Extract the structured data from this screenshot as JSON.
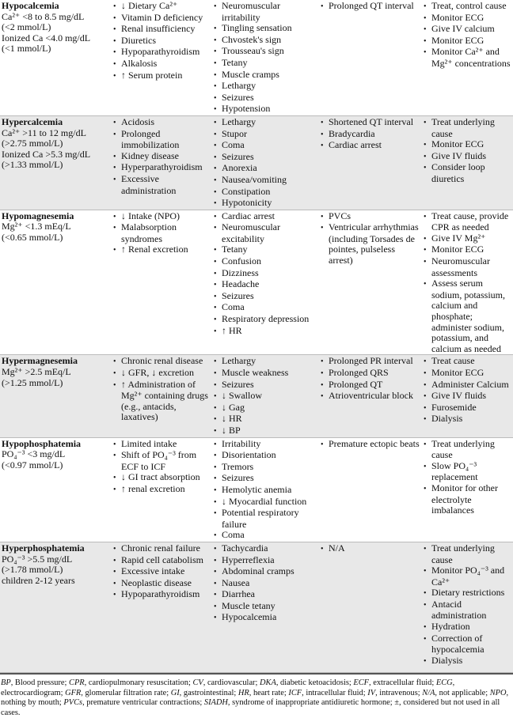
{
  "rows": [
    {
      "condition": "Hypocalcemia",
      "criteria": [
        "Ca²⁺ <8 to 8.5 mg/dL",
        "(<2 mmol/L)",
        "Ionized Ca <4.0 mg/dL",
        "(<1 mmol/L)"
      ],
      "causes": [
        "↓ Dietary Ca²⁺",
        "Vitamin D deficiency",
        "Renal insufficiency",
        "Diuretics",
        "Hypoparathyroidism",
        "Alkalosis",
        "↑ Serum protein"
      ],
      "signs": [
        "Neuromuscular irritability",
        "Tingling sensation",
        "Chvostek's sign",
        "Trousseau's sign",
        "Tetany",
        "Muscle cramps",
        "Lethargy",
        "Seizures",
        "Hypotension"
      ],
      "ecg": [
        "Prolonged QT interval"
      ],
      "treatment": [
        "Treat, control cause",
        "Monitor ECG",
        "Give IV calcium",
        "Monitor ECG",
        "Monitor Ca²⁺ and Mg²⁺ concentrations"
      ]
    },
    {
      "condition": "Hypercalcemia",
      "criteria": [
        "Ca²⁺ >11 to 12 mg/dL",
        "(>2.75 mmol/L)",
        "Ionized Ca >5.3 mg/dL",
        "(>1.33 mmol/L)"
      ],
      "causes": [
        "Acidosis",
        "Prolonged immobilization",
        "Kidney disease",
        "Hyperparathyroidism",
        "Excessive administration"
      ],
      "signs": [
        "Lethargy",
        "Stupor",
        "Coma",
        "Seizures",
        "Anorexia",
        "Nausea/vomiting",
        "Constipation",
        "Hypotonicity"
      ],
      "ecg": [
        "Shortened QT interval",
        "Bradycardia",
        "Cardiac arrest"
      ],
      "treatment": [
        "Treat underlying cause",
        "Monitor ECG",
        "Give IV fluids",
        "Consider loop diuretics"
      ]
    },
    {
      "condition": "Hypomagnesemia",
      "criteria": [
        "Mg²⁺ <1.3 mEq/L",
        "(<0.65 mmol/L)"
      ],
      "causes": [
        "↓ Intake (NPO)",
        "Malabsorption syndromes",
        "↑ Renal excretion"
      ],
      "signs": [
        "Cardiac arrest",
        "Neuromuscular excitability",
        "Tetany",
        "Confusion",
        "Dizziness",
        "Headache",
        "Seizures",
        "Coma",
        "Respiratory depression",
        "↑ HR"
      ],
      "ecg": [
        "PVCs",
        "Ventricular arrhythmias (including Torsades de pointes, pulseless arrest)"
      ],
      "treatment": [
        "Treat cause, provide CPR as needed",
        "Give IV Mg²⁺",
        "Monitor ECG",
        "Neuromuscular assessments",
        "Assess serum sodium, potassium, calcium and phosphate; administer sodium, potassium, and calcium as needed"
      ]
    },
    {
      "condition": "Hypermagnesemia",
      "criteria": [
        "Mg²⁺ >2.5 mEq/L",
        "(>1.25 mmol/L)"
      ],
      "causes": [
        "Chronic renal disease",
        "↓ GFR, ↓ excretion",
        "↑ Administration of Mg²⁺ containing drugs (e.g., antacids, laxatives)"
      ],
      "signs": [
        "Lethargy",
        "Muscle weakness",
        "Seizures",
        "↓ Swallow",
        "↓ Gag",
        "↓ HR",
        "↓ BP"
      ],
      "ecg": [
        "Prolonged PR interval",
        "Prolonged QRS",
        "Prolonged QT",
        "Atrioventricular block"
      ],
      "treatment": [
        "Treat cause",
        "Monitor ECG",
        "Administer Calcium",
        "Give IV fluids",
        "Furosemide",
        "Dialysis"
      ]
    },
    {
      "condition": "Hypophosphatemia",
      "criteria": [
        "PO₄⁻³ <3 mg/dL",
        "(<0.97 mmol/L)"
      ],
      "causes": [
        "Limited intake",
        "Shift of PO₄⁻³ from ECF to ICF",
        "↓ GI tract absorption",
        "↑ renal excretion"
      ],
      "signs": [
        "Irritability",
        "Disorientation",
        "Tremors",
        "Seizures",
        "Hemolytic anemia",
        "↓ Myocardial function",
        "Potential respiratory failure",
        "Coma"
      ],
      "ecg": [
        "Premature ectopic beats"
      ],
      "treatment": [
        "Treat underlying cause",
        "Slow PO₄⁻³ replacement",
        "Monitor for other electrolyte imbalances"
      ]
    },
    {
      "condition": "Hyperphosphatemia",
      "criteria": [
        "PO₄⁻³ >5.5 mg/dL",
        "(>1.78 mmol/L)",
        "children 2-12 years"
      ],
      "causes": [
        "Chronic renal failure",
        "Rapid cell catabolism",
        "Excessive intake",
        "Neoplastic disease",
        "Hypoparathyroidism"
      ],
      "signs": [
        "Tachycardia",
        "Hyperreflexia",
        "Abdominal cramps",
        "Nausea",
        "Diarrhea",
        "Muscle tetany",
        "Hypocalcemia"
      ],
      "ecg": [
        "N/A"
      ],
      "treatment": [
        "Treat underlying cause",
        "Monitor PO₄⁻³ and Ca²⁺",
        "Dietary restrictions",
        "Antacid administration",
        "Hydration",
        "Correction of hypocalcemia",
        "Dialysis"
      ]
    }
  ],
  "footnote": [
    {
      "abbr": "BP",
      "def": "Blood pressure"
    },
    {
      "abbr": "CPR",
      "def": "cardiopulmonary resuscitation"
    },
    {
      "abbr": "CV",
      "def": "cardiovascular"
    },
    {
      "abbr": "DKA",
      "def": "diabetic ketoacidosis"
    },
    {
      "abbr": "ECF",
      "def": "extracellular fluid"
    },
    {
      "abbr": "ECG",
      "def": "electrocardiogram"
    },
    {
      "abbr": "GFR",
      "def": "glomerular filtration rate"
    },
    {
      "abbr": "GI",
      "def": "gastrointestinal"
    },
    {
      "abbr": "HR",
      "def": "heart rate"
    },
    {
      "abbr": "ICF",
      "def": "intracellular fluid"
    },
    {
      "abbr": "IV",
      "def": "intravenous"
    },
    {
      "abbr": "N/A",
      "def": "not applicable"
    },
    {
      "abbr": "NPO",
      "def": "nothing by mouth"
    },
    {
      "abbr": "PVCs",
      "def": "premature ventricular contractions"
    },
    {
      "abbr": "SIADH",
      "def": "syndrome of inappropriate antidiuretic hormone"
    },
    {
      "abbr": "±",
      "def": "considered but not used in all cases."
    }
  ],
  "colors": {
    "alt_row": "#e8e8e8",
    "rule": "#555555"
  }
}
